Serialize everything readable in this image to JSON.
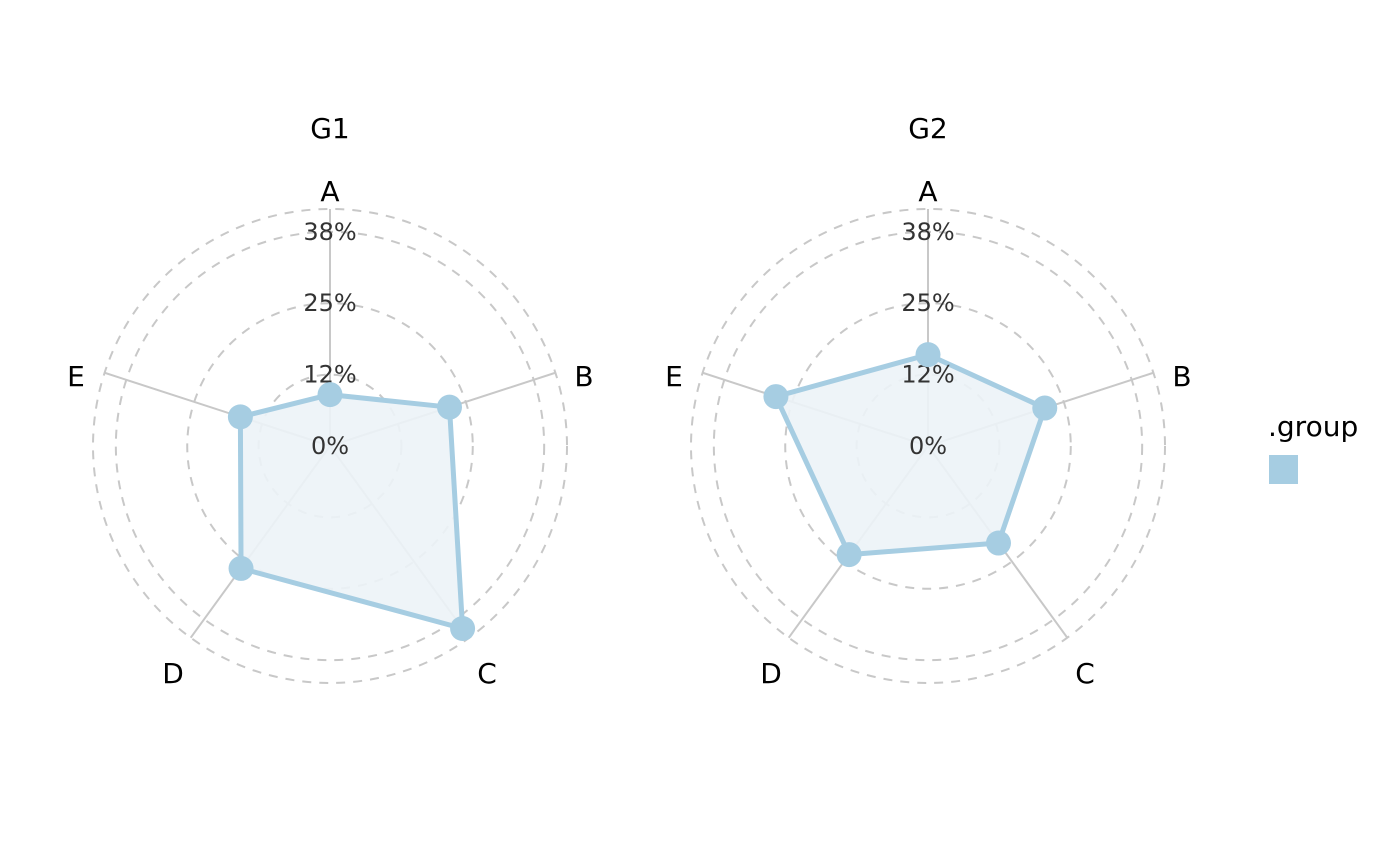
{
  "chart_data": {
    "type": "radar",
    "axes": [
      "A",
      "B",
      "C",
      "D",
      "E"
    ],
    "ticks": [
      "0%",
      "12%",
      "25%",
      "38%"
    ],
    "tick_values": [
      0,
      12.5,
      25,
      37.5
    ],
    "rmax": 41.5,
    "grid": "dashed circles",
    "legend": {
      "title": ".group",
      "position": "right",
      "entries": [
        ""
      ]
    },
    "colors": {
      "series": "#a6cde2",
      "fill": "#ecf3f7",
      "spoke": "#c8c8c8",
      "grid": "#c8c8c8",
      "text": "#000000",
      "tick": "#333333"
    },
    "panels": [
      {
        "title": "G1",
        "values": [
          9,
          22,
          39.5,
          26.5,
          16.5
        ]
      },
      {
        "title": "G2",
        "values": [
          16,
          21.5,
          21,
          23.5,
          28
        ]
      }
    ]
  }
}
